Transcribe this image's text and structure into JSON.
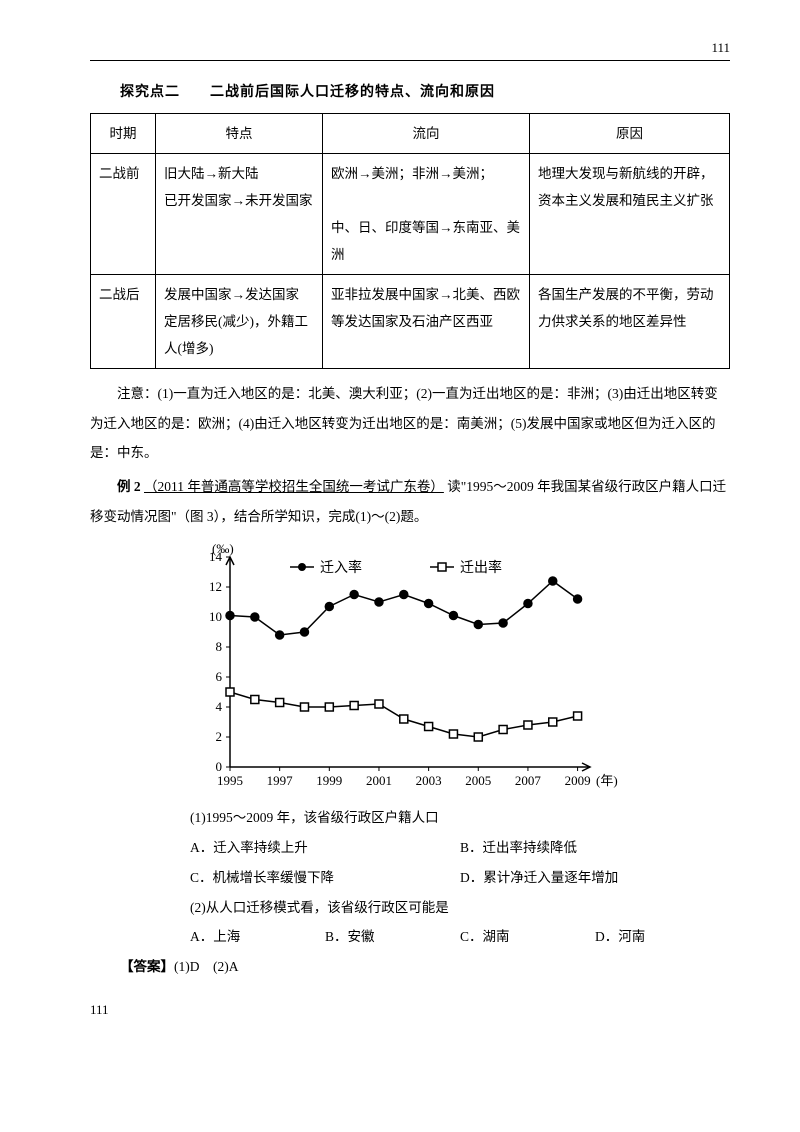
{
  "page_number_top": "111",
  "page_number_bottom": "111",
  "section_title": "探究点二　　二战前后国际人口迁移的特点、流向和原因",
  "table": {
    "headers": [
      "时期",
      "特点",
      "流向",
      "原因"
    ],
    "rows": [
      {
        "period": "二战前",
        "feature": "旧大陆→新大陆\n已开发国家→未开发国家",
        "flow": "欧洲→美洲；非洲→美洲；\n\n中、日、印度等国→东南亚、美洲",
        "reason": "地理大发现与新航线的开辟，资本主义发展和殖民主义扩张"
      },
      {
        "period": "二战后",
        "feature": "发展中国家→发达国家\n定居移民(减少)，外籍工人(增多)",
        "flow": "亚非拉发展中国家→北美、西欧等发达国家及石油产区西亚",
        "reason": "各国生产发展的不平衡，劳动力供求关系的地区差异性"
      }
    ]
  },
  "note": "注意：(1)一直为迁入地区的是：北美、澳大利亚；(2)一直为迁出地区的是：非洲；(3)由迁出地区转变为迁入地区的是：欧洲；(4)由迁入地区转变为迁出地区的是：南美洲；(5)发展中国家或地区但为迁入区的是：中东。",
  "example": {
    "label": "例 2",
    "source": "（2011 年普通高等学校招生全国统一考试广东卷）",
    "prompt_a": "读\"1995～2009 年我国某省级行政区户籍人口迁移变动情况图\"（图 3），结合所学知识，完成(1)～(2)题。"
  },
  "chart": {
    "type": "line",
    "y_unit": "(‰)",
    "x_unit": "(年)",
    "ylim": [
      0,
      14
    ],
    "yticks": [
      0,
      2,
      4,
      6,
      8,
      10,
      12,
      14
    ],
    "xticks": [
      1995,
      1997,
      1999,
      2001,
      2003,
      2005,
      2007,
      2009
    ],
    "legend": {
      "in": "迁入率",
      "out": "迁出率"
    },
    "series_in": {
      "marker": "filled-circle",
      "color": "#000000",
      "x": [
        1995,
        1996,
        1997,
        1998,
        1999,
        2000,
        2001,
        2002,
        2003,
        2004,
        2005,
        2006,
        2007,
        2008,
        2009
      ],
      "y": [
        10.1,
        10.0,
        8.8,
        9.0,
        10.7,
        11.5,
        11.0,
        11.5,
        10.9,
        10.1,
        9.5,
        9.6,
        10.9,
        12.4,
        11.2
      ]
    },
    "series_out": {
      "marker": "open-square",
      "color": "#000000",
      "x": [
        1995,
        1996,
        1997,
        1998,
        1999,
        2000,
        2001,
        2002,
        2003,
        2004,
        2005,
        2006,
        2007,
        2008,
        2009
      ],
      "y": [
        5.0,
        4.5,
        4.3,
        4.0,
        4.0,
        4.1,
        4.2,
        3.2,
        2.7,
        2.2,
        2.0,
        2.5,
        2.8,
        3.0,
        3.4
      ]
    },
    "background": "#ffffff",
    "axis_color": "#000000",
    "font_size": 13
  },
  "q1": {
    "stem": "(1)1995～2009 年，该省级行政区户籍人口",
    "opts": [
      "A．迁入率持续上升",
      "B．迁出率持续降低",
      "C．机械增长率缓慢下降",
      "D．累计净迁入量逐年增加"
    ]
  },
  "q2": {
    "stem": "(2)从人口迁移模式看，该省级行政区可能是",
    "opts": [
      "A．上海",
      "B．安徽",
      "C．湖南",
      "D．河南"
    ]
  },
  "answer": {
    "label": "【答案】",
    "text": "(1)D　(2)A"
  }
}
